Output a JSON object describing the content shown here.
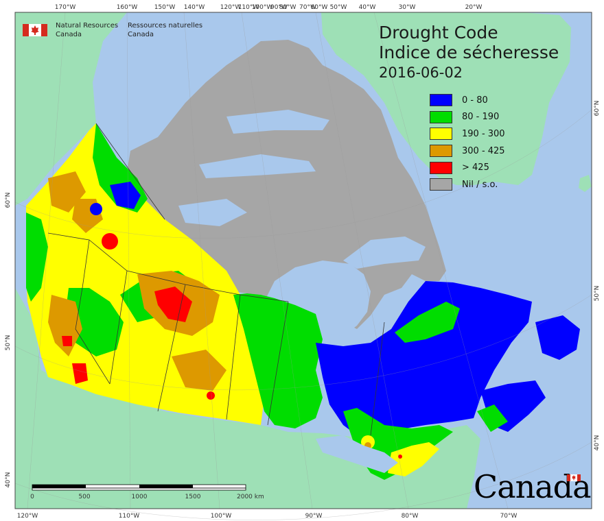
{
  "title": {
    "line1": "Drought Code",
    "line2": "Indice de sécheresse",
    "date": "2016-06-02"
  },
  "agency": {
    "en_line1": "Natural Resources",
    "en_line2": "Canada",
    "fr_line1": "Ressources naturelles",
    "fr_line2": "Canada"
  },
  "legend": [
    {
      "label": "0 - 80",
      "color": "#0000ff"
    },
    {
      "label": "80 - 190",
      "color": "#00dd00"
    },
    {
      "label": "190 - 300",
      "color": "#ffff00"
    },
    {
      "label": "300 - 425",
      "color": "#dd9900"
    },
    {
      "label": "> 425",
      "color": "#ff0000"
    },
    {
      "label": "Nil / s.o.",
      "color": "#a6a6a6"
    }
  ],
  "scale_bar": {
    "labels": [
      "0",
      "500",
      "1000",
      "1500",
      "2000 km"
    ]
  },
  "top_ticks": [
    "170°W",
    "160°W",
    "150°W",
    "140°W",
    "120°W",
    "110°W",
    "100°W",
    "90°W",
    "80°W",
    "70°W",
    "60°W",
    "50°W",
    "40°W",
    "30°W",
    "20°W"
  ],
  "bottom_ticks": [
    "120°W",
    "110°W",
    "100°W",
    "90°W",
    "80°W",
    "70°W"
  ],
  "left_ticks": [
    "60°N",
    "50°N",
    "40°N"
  ],
  "right_ticks": [
    "60°N",
    "50°N",
    "40°N"
  ],
  "wordmark": "Canada",
  "colors": {
    "ocean": "#a9c8ec",
    "land": "#9ee0b6",
    "nil": "#a6a6a6"
  }
}
